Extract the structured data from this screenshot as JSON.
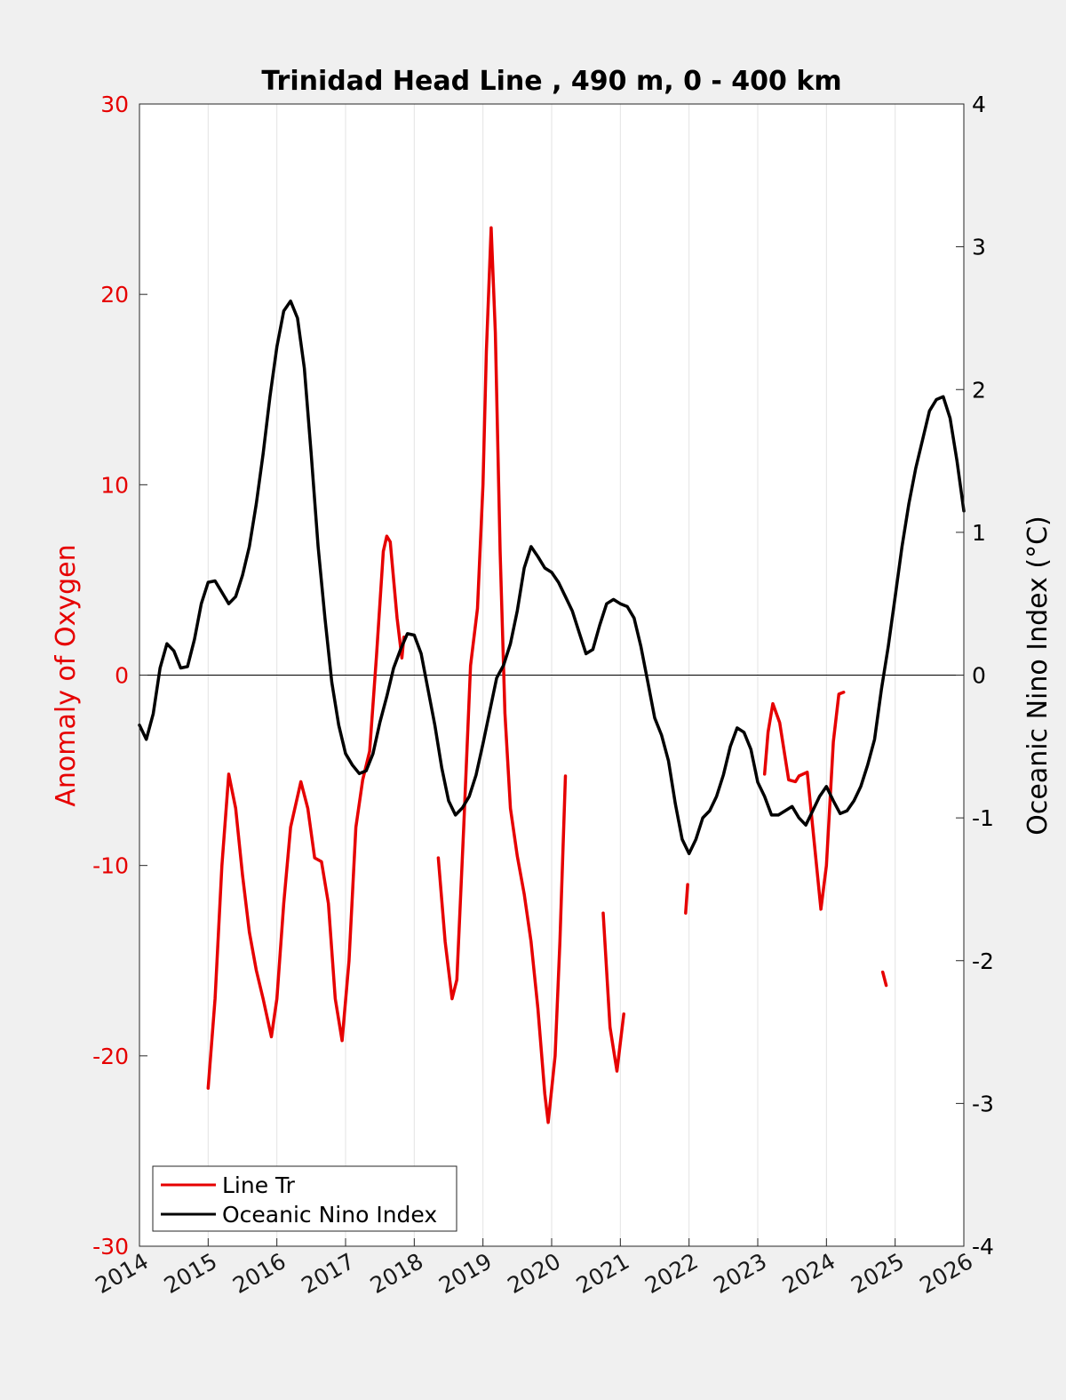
{
  "chart_data": {
    "type": "line",
    "title": "Trinidad Head Line , 490 m, 0 - 400 km",
    "xlabel": "",
    "xlim": [
      2014,
      2026
    ],
    "xticks": [
      "2014",
      "2015",
      "2016",
      "2017",
      "2018",
      "2019",
      "2020",
      "2021",
      "2022",
      "2023",
      "2024",
      "2025",
      "2026"
    ],
    "y_left": {
      "label": "Anomaly of Oxygen",
      "lim": [
        -30,
        30
      ],
      "ticks": [
        "30",
        "20",
        "10",
        "0",
        "-10",
        "-20",
        "-30"
      ],
      "color": "#e60000"
    },
    "y_right": {
      "label": "Oceanic Nino Index (°C)",
      "lim": [
        -4,
        4
      ],
      "ticks": [
        "4",
        "3",
        "2",
        "1",
        "0",
        "-1",
        "-2",
        "-3",
        "-4"
      ],
      "color": "#000000"
    },
    "grid": "vertical",
    "legend_position": "bottom-left",
    "series": [
      {
        "name": "Line Tr",
        "axis": "left",
        "color": "#e60000",
        "segments": [
          [
            [
              2015.0,
              -21.7
            ],
            [
              2015.1,
              -17
            ],
            [
              2015.2,
              -10
            ],
            [
              2015.3,
              -5.2
            ],
            [
              2015.4,
              -7
            ],
            [
              2015.5,
              -10.5
            ],
            [
              2015.6,
              -13.5
            ],
            [
              2015.7,
              -15.5
            ],
            [
              2015.8,
              -17
            ],
            [
              2015.92,
              -19
            ],
            [
              2016.0,
              -17
            ],
            [
              2016.1,
              -12
            ],
            [
              2016.2,
              -8
            ],
            [
              2016.35,
              -5.6
            ],
            [
              2016.45,
              -7
            ],
            [
              2016.55,
              -9.6
            ],
            [
              2016.65,
              -9.8
            ],
            [
              2016.75,
              -12
            ],
            [
              2016.85,
              -17
            ],
            [
              2016.95,
              -19.2
            ],
            [
              2017.05,
              -15
            ],
            [
              2017.15,
              -8
            ],
            [
              2017.25,
              -5.5
            ],
            [
              2017.35,
              -4
            ],
            [
              2017.45,
              1
            ],
            [
              2017.55,
              6.5
            ],
            [
              2017.6,
              7.3
            ],
            [
              2017.65,
              7
            ],
            [
              2017.75,
              3
            ],
            [
              2017.82,
              0.9
            ],
            [
              2017.85,
              2
            ]
          ],
          [
            [
              2018.35,
              -9.6
            ],
            [
              2018.45,
              -14
            ],
            [
              2018.55,
              -17
            ],
            [
              2018.62,
              -16
            ],
            [
              2018.72,
              -8
            ],
            [
              2018.82,
              0.5
            ],
            [
              2018.92,
              3.5
            ],
            [
              2019.0,
              10
            ],
            [
              2019.05,
              17
            ],
            [
              2019.12,
              23.5
            ],
            [
              2019.18,
              18
            ],
            [
              2019.25,
              6.5
            ],
            [
              2019.32,
              -2
            ],
            [
              2019.4,
              -7
            ],
            [
              2019.5,
              -9.5
            ],
            [
              2019.6,
              -11.5
            ],
            [
              2019.7,
              -14
            ],
            [
              2019.8,
              -17.5
            ],
            [
              2019.9,
              -22
            ],
            [
              2019.95,
              -23.5
            ],
            [
              2020.05,
              -20
            ],
            [
              2020.12,
              -14
            ],
            [
              2020.2,
              -5.3
            ]
          ],
          [
            [
              2020.75,
              -12.5
            ],
            [
              2020.85,
              -18.5
            ],
            [
              2020.95,
              -20.8
            ],
            [
              2021.05,
              -17.8
            ]
          ],
          [
            [
              2021.95,
              -12.5
            ],
            [
              2021.98,
              -11
            ]
          ],
          [
            [
              2023.1,
              -5.2
            ],
            [
              2023.15,
              -3
            ],
            [
              2023.22,
              -1.5
            ],
            [
              2023.32,
              -2.5
            ],
            [
              2023.45,
              -5.5
            ],
            [
              2023.55,
              -5.6
            ],
            [
              2023.6,
              -5.3
            ],
            [
              2023.72,
              -5.1
            ],
            [
              2023.8,
              -8
            ],
            [
              2023.92,
              -12.3
            ],
            [
              2024.0,
              -10
            ],
            [
              2024.1,
              -3.5
            ],
            [
              2024.18,
              -1
            ],
            [
              2024.25,
              -0.9
            ]
          ],
          [
            [
              2024.82,
              -15.6
            ],
            [
              2024.87,
              -16.3
            ]
          ]
        ]
      },
      {
        "name": "Oceanic Nino Index",
        "axis": "right",
        "color": "#000000",
        "segments": [
          [
            [
              2014.0,
              -0.35
            ],
            [
              2014.1,
              -0.45
            ],
            [
              2014.2,
              -0.27
            ],
            [
              2014.3,
              0.05
            ],
            [
              2014.4,
              0.22
            ],
            [
              2014.5,
              0.17
            ],
            [
              2014.6,
              0.05
            ],
            [
              2014.7,
              0.06
            ],
            [
              2014.8,
              0.25
            ],
            [
              2014.9,
              0.5
            ],
            [
              2015.0,
              0.65
            ],
            [
              2015.1,
              0.66
            ],
            [
              2015.2,
              0.58
            ],
            [
              2015.3,
              0.5
            ],
            [
              2015.4,
              0.55
            ],
            [
              2015.5,
              0.7
            ],
            [
              2015.6,
              0.9
            ],
            [
              2015.7,
              1.2
            ],
            [
              2015.8,
              1.55
            ],
            [
              2015.9,
              1.95
            ],
            [
              2016.0,
              2.3
            ],
            [
              2016.1,
              2.55
            ],
            [
              2016.2,
              2.62
            ],
            [
              2016.3,
              2.5
            ],
            [
              2016.4,
              2.15
            ],
            [
              2016.5,
              1.55
            ],
            [
              2016.6,
              0.9
            ],
            [
              2016.7,
              0.4
            ],
            [
              2016.8,
              -0.05
            ],
            [
              2016.9,
              -0.35
            ],
            [
              2017.0,
              -0.55
            ],
            [
              2017.1,
              -0.63
            ],
            [
              2017.2,
              -0.69
            ],
            [
              2017.3,
              -0.67
            ],
            [
              2017.4,
              -0.55
            ],
            [
              2017.5,
              -0.33
            ],
            [
              2017.6,
              -0.15
            ],
            [
              2017.7,
              0.05
            ],
            [
              2017.8,
              0.18
            ],
            [
              2017.9,
              0.29
            ],
            [
              2018.0,
              0.28
            ],
            [
              2018.1,
              0.15
            ],
            [
              2018.2,
              -0.1
            ],
            [
              2018.3,
              -0.35
            ],
            [
              2018.4,
              -0.65
            ],
            [
              2018.5,
              -0.88
            ],
            [
              2018.6,
              -0.98
            ],
            [
              2018.7,
              -0.93
            ],
            [
              2018.8,
              -0.85
            ],
            [
              2018.9,
              -0.7
            ],
            [
              2019.0,
              -0.48
            ],
            [
              2019.1,
              -0.25
            ],
            [
              2019.2,
              -0.02
            ],
            [
              2019.3,
              0.07
            ],
            [
              2019.4,
              0.22
            ],
            [
              2019.5,
              0.45
            ],
            [
              2019.6,
              0.75
            ],
            [
              2019.7,
              0.9
            ],
            [
              2019.8,
              0.83
            ],
            [
              2019.9,
              0.75
            ],
            [
              2020.0,
              0.72
            ],
            [
              2020.1,
              0.65
            ],
            [
              2020.2,
              0.55
            ],
            [
              2020.3,
              0.45
            ],
            [
              2020.4,
              0.3
            ],
            [
              2020.5,
              0.15
            ],
            [
              2020.6,
              0.18
            ],
            [
              2020.7,
              0.35
            ],
            [
              2020.8,
              0.5
            ],
            [
              2020.9,
              0.53
            ],
            [
              2021.0,
              0.5
            ],
            [
              2021.1,
              0.48
            ],
            [
              2021.2,
              0.4
            ],
            [
              2021.3,
              0.2
            ],
            [
              2021.4,
              -0.05
            ],
            [
              2021.5,
              -0.3
            ],
            [
              2021.6,
              -0.42
            ],
            [
              2021.7,
              -0.6
            ],
            [
              2021.8,
              -0.9
            ],
            [
              2021.9,
              -1.15
            ],
            [
              2022.0,
              -1.25
            ],
            [
              2022.1,
              -1.15
            ],
            [
              2022.2,
              -1.0
            ],
            [
              2022.3,
              -0.95
            ],
            [
              2022.4,
              -0.85
            ],
            [
              2022.5,
              -0.7
            ],
            [
              2022.6,
              -0.5
            ],
            [
              2022.7,
              -0.37
            ],
            [
              2022.8,
              -0.4
            ],
            [
              2022.9,
              -0.52
            ],
            [
              2023.0,
              -0.75
            ],
            [
              2023.1,
              -0.85
            ],
            [
              2023.2,
              -0.98
            ],
            [
              2023.3,
              -0.98
            ],
            [
              2023.4,
              -0.95
            ],
            [
              2023.5,
              -0.92
            ],
            [
              2023.6,
              -1.0
            ],
            [
              2023.7,
              -1.05
            ],
            [
              2023.8,
              -0.95
            ],
            [
              2023.9,
              -0.85
            ],
            [
              2024.0,
              -0.78
            ],
            [
              2024.1,
              -0.88
            ],
            [
              2024.2,
              -0.97
            ],
            [
              2024.3,
              -0.95
            ],
            [
              2024.4,
              -0.88
            ],
            [
              2024.5,
              -0.78
            ],
            [
              2024.6,
              -0.63
            ],
            [
              2024.7,
              -0.45
            ],
            [
              2024.8,
              -0.1
            ],
            [
              2024.9,
              0.2
            ],
            [
              2025.0,
              0.55
            ],
            [
              2025.1,
              0.9
            ],
            [
              2025.2,
              1.2
            ],
            [
              2025.3,
              1.45
            ],
            [
              2025.4,
              1.65
            ],
            [
              2025.5,
              1.85
            ],
            [
              2025.6,
              1.93
            ],
            [
              2025.7,
              1.95
            ],
            [
              2025.8,
              1.8
            ],
            [
              2025.9,
              1.5
            ],
            [
              2026.0,
              1.15
            ]
          ]
        ]
      }
    ]
  }
}
